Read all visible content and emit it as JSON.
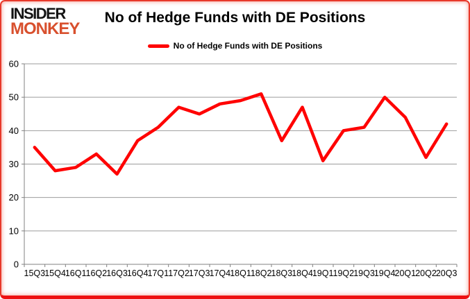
{
  "logo": {
    "line1": "INSIDER",
    "line2": "MONKEY",
    "monkey_color": "#d8502e"
  },
  "header": {
    "title": "No of Hedge Funds with DE Positions"
  },
  "legend": {
    "label": "No of Hedge Funds with DE Positions",
    "color": "#ff0000"
  },
  "chart_data": {
    "type": "line",
    "title": "No of Hedge Funds with DE Positions",
    "series_name": "No of Hedge Funds with DE Positions",
    "categories": [
      "15Q3",
      "15Q4",
      "16Q1",
      "16Q2",
      "16Q3",
      "16Q4",
      "17Q1",
      "17Q2",
      "17Q3",
      "17Q4",
      "18Q1",
      "18Q2",
      "18Q3",
      "18Q4",
      "19Q1",
      "19Q2",
      "19Q3",
      "19Q4",
      "20Q1",
      "20Q2",
      "20Q3"
    ],
    "values": [
      35,
      28,
      29,
      33,
      27,
      37,
      41,
      47,
      45,
      48,
      49,
      51,
      37,
      47,
      31,
      40,
      41,
      50,
      44,
      32,
      42
    ],
    "xlabel": "",
    "ylabel": "",
    "ylim": [
      0,
      60
    ],
    "ytick_step": 10,
    "yticks": [
      0,
      10,
      20,
      30,
      40,
      50,
      60
    ],
    "grid": true,
    "legend_position": "top",
    "line_color": "#ff0000",
    "grid_color": "#9b9b9b",
    "axis_color": "#808080"
  }
}
